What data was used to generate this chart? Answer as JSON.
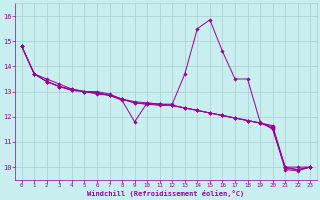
{
  "background_color": "#c8eef0",
  "line_color": "#990099",
  "grid_color": "#aacccc",
  "xlabel": "Windchill (Refroidissement éolien,°C)",
  "tick_color": "#990099",
  "xlim": [
    -0.5,
    23.5
  ],
  "ylim": [
    9.5,
    16.5
  ],
  "yticks": [
    10,
    11,
    12,
    13,
    14,
    15,
    16
  ],
  "xticks": [
    0,
    1,
    2,
    3,
    4,
    5,
    6,
    7,
    8,
    9,
    10,
    11,
    12,
    13,
    14,
    15,
    16,
    17,
    18,
    19,
    20,
    21,
    22,
    23
  ],
  "series": [
    [
      14.8,
      13.7,
      13.5,
      13.3,
      13.1,
      13.0,
      12.9,
      12.85,
      12.65,
      11.8,
      12.55,
      12.5,
      12.5,
      13.7,
      15.5,
      15.85,
      14.6,
      13.5,
      13.5,
      11.8,
      11.5,
      10.0,
      10.0,
      10.0
    ],
    [
      14.8,
      13.7,
      13.4,
      13.2,
      13.1,
      13.0,
      13.0,
      12.9,
      12.7,
      12.6,
      12.55,
      12.5,
      12.45,
      12.35,
      12.25,
      12.15,
      12.05,
      11.95,
      11.85,
      11.75,
      11.65,
      10.0,
      9.9,
      10.0
    ],
    [
      14.8,
      13.7,
      13.4,
      13.2,
      13.05,
      13.0,
      12.95,
      12.85,
      12.7,
      12.55,
      12.5,
      12.5,
      12.45,
      12.35,
      12.25,
      12.15,
      12.05,
      11.95,
      11.85,
      11.75,
      11.6,
      9.95,
      9.9,
      10.0
    ],
    [
      14.8,
      13.7,
      13.4,
      13.2,
      13.05,
      13.0,
      12.95,
      12.85,
      12.7,
      12.55,
      12.5,
      12.45,
      12.45,
      12.35,
      12.25,
      12.15,
      12.05,
      11.95,
      11.85,
      11.75,
      11.55,
      9.9,
      9.85,
      10.0
    ]
  ]
}
